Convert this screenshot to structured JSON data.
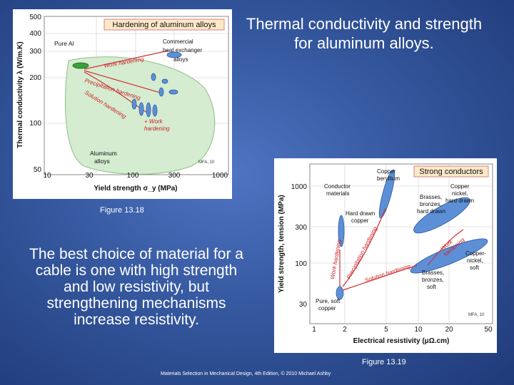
{
  "slide": {
    "title": "Thermal conductivity and strength for aluminum alloys.",
    "body": "The best choice of material for a cable is one with high strength and low resistivity, but strengthening mechanisms increase resistivity.",
    "footer": "Materials Selection in Mechanical Design, 4th Edition, © 2010 Michael Ashby",
    "figure1_caption": "Figure 13.18",
    "figure2_caption": "Figure 13.19"
  },
  "figure1": {
    "banner": "Hardening of aluminum alloys",
    "ylabel": "Thermal conductivity λ (W/m.K)",
    "xlabel": "Yield strength σ_y (MPa)",
    "xticks": [
      "10",
      "30",
      "100",
      "300",
      "1000"
    ],
    "yticks": [
      "50",
      "100",
      "200",
      "300",
      "400",
      "500"
    ],
    "labels": {
      "pure_al": "Pure Al",
      "commercial_1": "Commercial",
      "commercial_2": "heat exchanger",
      "commercial_3": "alloys",
      "work_hardening": "Work hardening",
      "precipitation_hardening": "Precipitation hardening",
      "solution_hardening": "Solution hardening",
      "work_hardening_2a": "+ Work",
      "work_hardening_2b": "hardening",
      "aluminum_alloys_1": "Aluminum",
      "aluminum_alloys_2": "alloys",
      "credit": "MFA, 10"
    }
  },
  "figure2": {
    "banner": "Strong conductors",
    "ylabel": "Yield strength, tension (MPa)",
    "xlabel": "Electrical resistivity (μΩ.cm)",
    "xticks": [
      "1",
      "2",
      "5",
      "10",
      "20",
      "50"
    ],
    "yticks": [
      "30",
      "100",
      "300",
      "1000"
    ],
    "labels": {
      "copper_beryllium_1": "Copper",
      "copper_beryllium_2": "beryllium",
      "conductor_1": "Conductor",
      "conductor_2": "materials",
      "hard_drawn_copper_1": "Hard drawn",
      "hard_drawn_copper_2": "copper",
      "brasses_hard_1": "Brasses,",
      "brasses_hard_2": "bronzes,",
      "brasses_hard_3": "hard drawn",
      "cupronickel_hard_1": "Copper",
      "cupronickel_hard_2": "nickel,",
      "cupronickel_hard_3": "hard drawn",
      "work_hardening": "Work hardening",
      "precipitation_hardening": "Precipitation hardening",
      "solution_hardening": "Solution hardening",
      "work_hardening_right_1": "Work",
      "work_hardening_right_2": "hardening",
      "cupronickel_soft_1": "Copper-",
      "cupronickel_soft_2": "nickel,",
      "cupronickel_soft_3": "soft",
      "brasses_soft_1": "Brasses,",
      "brasses_soft_2": "bronzes,",
      "brasses_soft_3": "soft",
      "pure_copper_1": "Pure, soft",
      "pure_copper_2": "copper",
      "credit": "MFA, 10"
    }
  }
}
